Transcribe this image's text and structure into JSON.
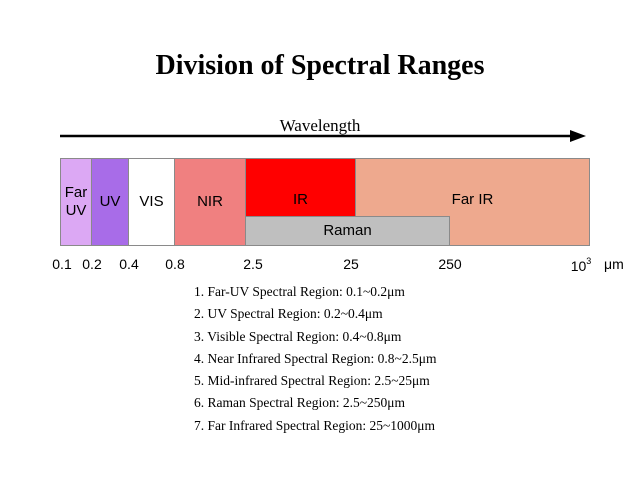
{
  "title": "Division of Spectral Ranges",
  "axis_label": "Wavelength",
  "unit": "μm",
  "bands": [
    {
      "label": "Far\nUV",
      "color": "#dca8f4"
    },
    {
      "label": "UV",
      "color": "#a86ce8"
    },
    {
      "label": "VIS",
      "color": "#ffffff"
    },
    {
      "label": "NIR",
      "color": "#f08080"
    },
    {
      "label": "IR",
      "color": "#ff0000"
    },
    {
      "label": "Far IR",
      "color": "#eea98e"
    },
    {
      "label": "Raman",
      "color": "#bfbfbf"
    }
  ],
  "ticks": {
    "t0": "0.1",
    "t1": "0.2",
    "t2": "0.4",
    "t3": "0.8",
    "t4": "2.5",
    "t5": "25",
    "t6": "250",
    "t7_base": "10",
    "t7_exp": "3"
  },
  "regions": [
    "1. Far-UV Spectral Region: 0.1~0.2μm",
    "2. UV Spectral Region: 0.2~0.4μm",
    "3. Visible Spectral Region: 0.4~0.8μm",
    "4. Near Infrared Spectral Region: 0.8~2.5μm",
    "5. Mid-infrared Spectral Region: 2.5~25μm",
    "6. Raman Spectral Region: 2.5~250μm",
    "7. Far Infrared Spectral Region: 25~1000μm"
  ]
}
